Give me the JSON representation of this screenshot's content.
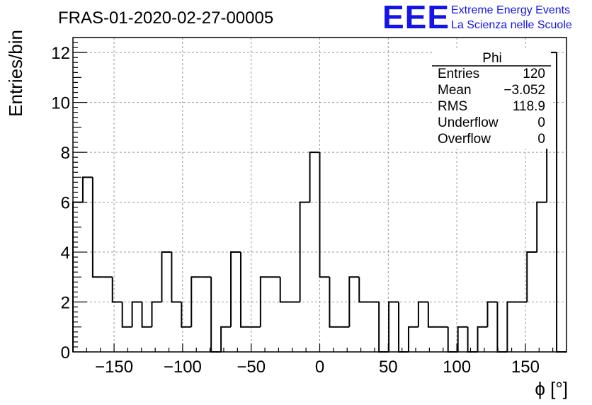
{
  "header": {
    "title": "FRAS-01-2020-02-27-00005",
    "logo_text": "EEE",
    "logo_line1": "Extreme Energy Events",
    "logo_line2": "La Scienza nelle Scuole",
    "logo_color": "#1414e6"
  },
  "stats_box": {
    "name": "Phi",
    "rows": [
      {
        "label": "Entries",
        "value": "120"
      },
      {
        "label": "Mean",
        "value": "−3.052"
      },
      {
        "label": "RMS",
        "value": "118.9"
      },
      {
        "label": "Underflow",
        "value": "0"
      },
      {
        "label": "Overflow",
        "value": "0"
      }
    ]
  },
  "chart_data": {
    "type": "histogram",
    "title": "FRAS-01-2020-02-27-00005",
    "xlabel": "ϕ [°]",
    "ylabel": "Entries/bin",
    "xlim": [
      -180,
      180
    ],
    "ylim": [
      0,
      12.6
    ],
    "bin_width": 7.2,
    "bin_start": -180,
    "values": [
      6,
      7,
      3,
      3,
      2,
      1,
      2,
      1,
      2,
      4,
      2,
      1,
      3,
      3,
      0,
      1,
      4,
      1,
      1,
      3,
      3,
      2,
      2,
      6,
      8,
      3,
      1,
      1,
      3,
      2,
      2,
      0,
      2,
      0,
      1,
      2,
      1,
      1,
      0,
      1,
      0,
      1,
      2,
      0,
      2,
      2,
      4,
      6,
      12,
      0
    ],
    "xticks": [
      -150,
      -100,
      -50,
      0,
      50,
      100,
      150
    ],
    "xtick_labels": [
      "−150",
      "−100",
      "−50",
      "0",
      "50",
      "100",
      "150"
    ],
    "yticks": [
      0,
      2,
      4,
      6,
      8,
      10,
      12
    ],
    "ytick_labels": [
      "0",
      "2",
      "4",
      "6",
      "8",
      "10",
      "12"
    ],
    "grid": true,
    "line_color": "#000000",
    "grid_color": "#999999"
  }
}
